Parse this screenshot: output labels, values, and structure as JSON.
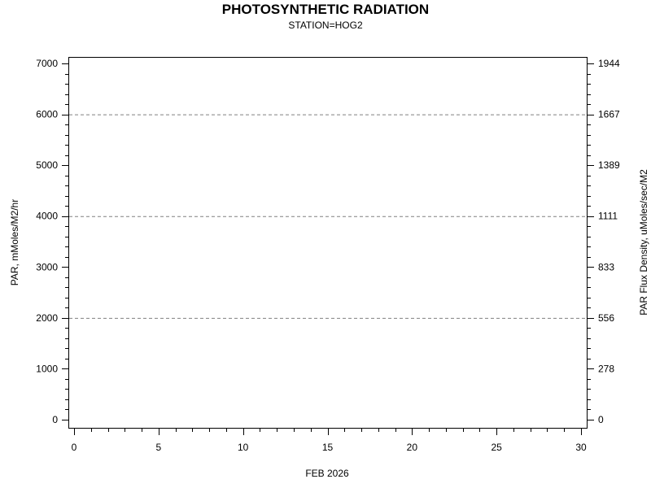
{
  "chart_data": {
    "type": "line",
    "title": "PHOTOSYNTHETIC RADIATION",
    "subtitle": "STATION=HOG2",
    "xlabel": "FEB 2026",
    "ylabel": "PAR, mMoles/M2/hr",
    "y2label": "PAR Flux Density, uMoles/sec/M2",
    "xlim": [
      0,
      30
    ],
    "ylim": [
      0,
      7000
    ],
    "x_ticks": [
      "0",
      "5",
      "10",
      "15",
      "20",
      "25",
      "30"
    ],
    "y_ticks": [
      "0",
      "1000",
      "2000",
      "3000",
      "4000",
      "5000",
      "6000",
      "7000"
    ],
    "y2_ticks": [
      "0",
      "278",
      "556",
      "833",
      "1111",
      "1389",
      "1667",
      "1944"
    ],
    "gridlines_y": [
      2000,
      4000,
      6000
    ],
    "series": [],
    "colors": {
      "axis": "#000000",
      "grid": "#808080"
    }
  }
}
